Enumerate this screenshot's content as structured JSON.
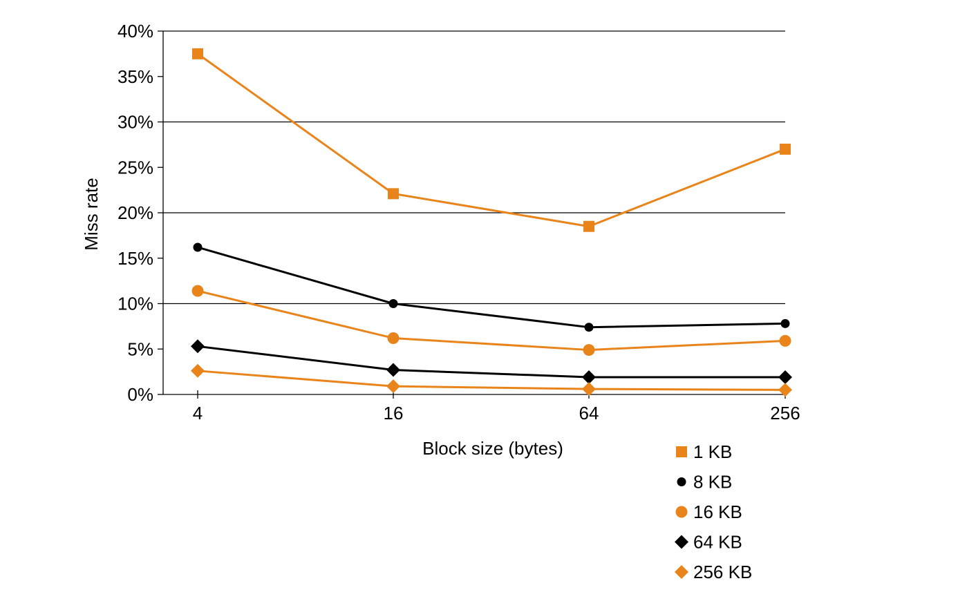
{
  "chart_data": {
    "type": "line",
    "title": "",
    "xlabel": "Block size (bytes)",
    "ylabel": "Miss rate",
    "x": [
      "4",
      "16",
      "64",
      "256"
    ],
    "x_scale": "log",
    "ylim": [
      0,
      40
    ],
    "y_ticks": [
      "0%",
      "5%",
      "10%",
      "15%",
      "20%",
      "25%",
      "30%",
      "35%",
      "40%"
    ],
    "y_tick_values": [
      0,
      5,
      10,
      15,
      20,
      25,
      30,
      35,
      40
    ],
    "y_unit": "%",
    "grid": "horizontal every 10%",
    "legend_position": "bottom-right",
    "series": [
      {
        "name": "1 KB",
        "values": [
          37.5,
          22.1,
          18.5,
          27.0
        ],
        "color": "#E8841A",
        "marker": "square"
      },
      {
        "name": "8 KB",
        "values": [
          16.2,
          10.0,
          7.4,
          7.8
        ],
        "color": "#000000",
        "marker": "small-circle"
      },
      {
        "name": "16 KB",
        "values": [
          11.4,
          6.2,
          4.9,
          5.9
        ],
        "color": "#E8841A",
        "marker": "circle"
      },
      {
        "name": "64 KB",
        "values": [
          5.3,
          2.7,
          1.9,
          1.9
        ],
        "color": "#000000",
        "marker": "diamond"
      },
      {
        "name": "256 KB",
        "values": [
          2.6,
          0.9,
          0.6,
          0.5
        ],
        "color": "#E8841A",
        "marker": "diamond"
      }
    ]
  }
}
